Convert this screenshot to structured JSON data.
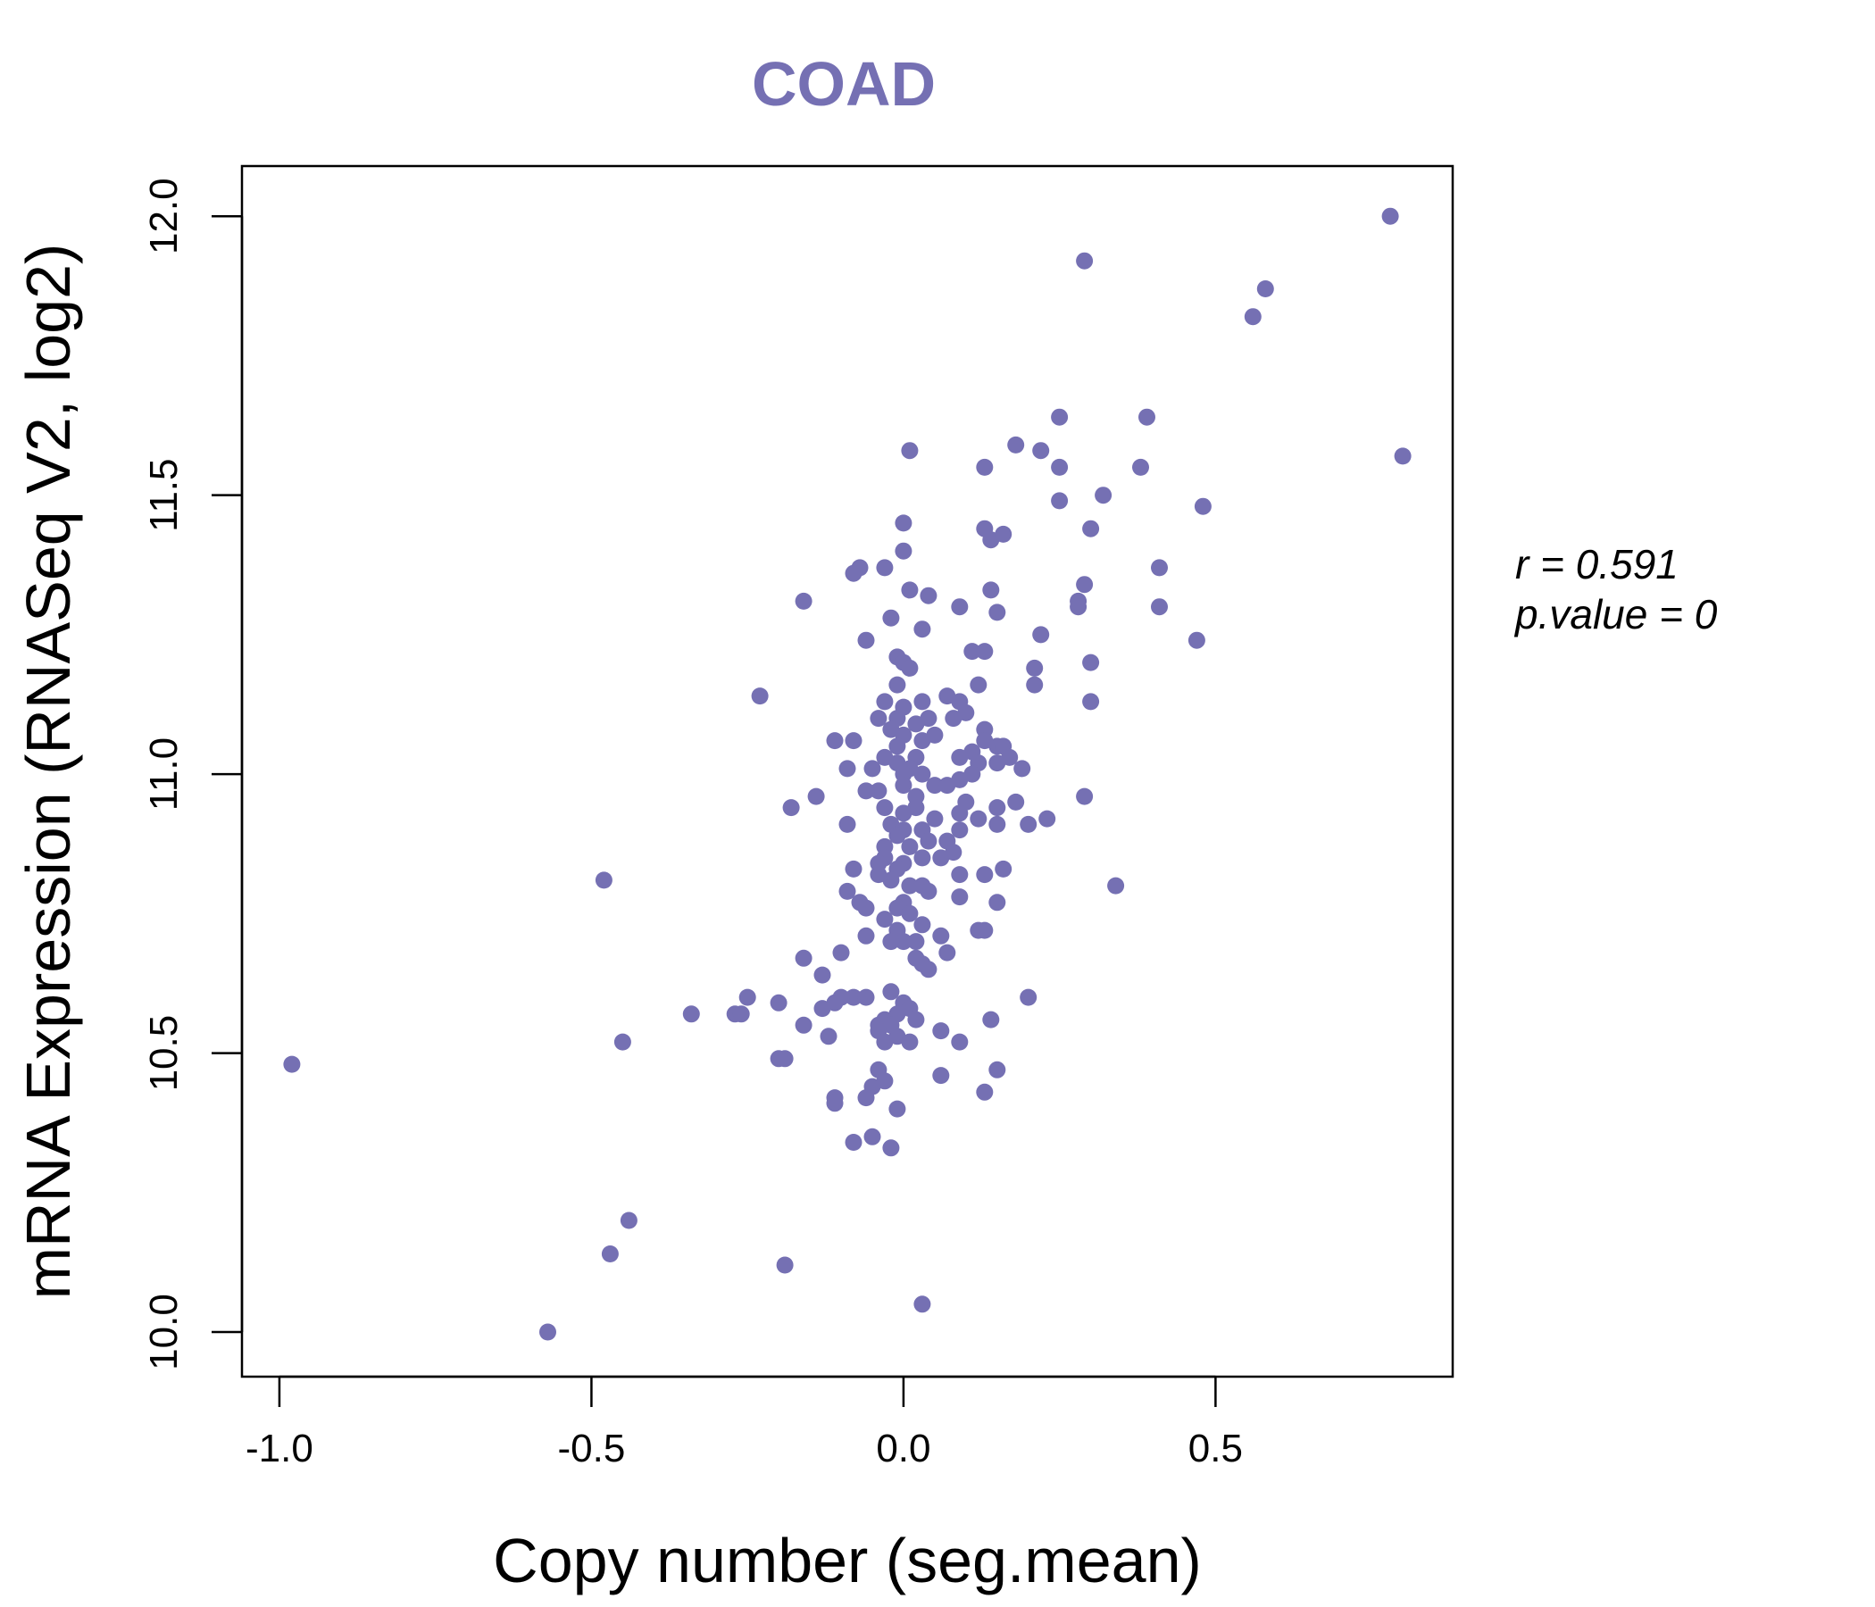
{
  "chart_data": {
    "type": "scatter",
    "title": "COAD",
    "xlabel": "Copy number (seg.mean)",
    "ylabel": "mRNA Expression (RNASeq V2, log2)",
    "xlim": [
      -1.06,
      0.88
    ],
    "ylim": [
      9.92,
      12.09
    ],
    "x_ticks": [
      -1.0,
      -0.5,
      0.0,
      0.5
    ],
    "x_tick_labels": [
      "-1.0",
      "-0.5",
      "0.0",
      "0.5"
    ],
    "y_ticks": [
      10.0,
      10.5,
      11.0,
      11.5,
      12.0
    ],
    "y_tick_labels": [
      "10.0",
      "10.5",
      "11.0",
      "11.5",
      "12.0"
    ],
    "grid": false,
    "point_color": "#7570b3",
    "annotations": {
      "r_label": "r = 0.591",
      "p_label": "p.value = 0"
    },
    "points": [
      [
        0.78,
        12.0
      ],
      [
        0.29,
        11.92
      ],
      [
        0.58,
        11.87
      ],
      [
        0.56,
        11.82
      ],
      [
        0.8,
        11.57
      ],
      [
        0.25,
        11.64
      ],
      [
        0.39,
        11.64
      ],
      [
        0.01,
        11.58
      ],
      [
        0.18,
        11.59
      ],
      [
        0.22,
        11.58
      ],
      [
        0.13,
        11.55
      ],
      [
        0.25,
        11.55
      ],
      [
        0.38,
        11.55
      ],
      [
        0.32,
        11.5
      ],
      [
        0.25,
        11.49
      ],
      [
        0.48,
        11.48
      ],
      [
        0.0,
        11.45
      ],
      [
        0.13,
        11.44
      ],
      [
        0.3,
        11.44
      ],
      [
        0.14,
        11.42
      ],
      [
        0.16,
        11.43
      ],
      [
        0.0,
        11.4
      ],
      [
        -0.07,
        11.37
      ],
      [
        -0.08,
        11.36
      ],
      [
        -0.03,
        11.37
      ],
      [
        0.41,
        11.37
      ],
      [
        0.29,
        11.34
      ],
      [
        0.14,
        11.33
      ],
      [
        0.01,
        11.33
      ],
      [
        0.04,
        11.32
      ],
      [
        -0.16,
        11.31
      ],
      [
        0.28,
        11.31
      ],
      [
        0.28,
        11.3
      ],
      [
        0.41,
        11.3
      ],
      [
        0.09,
        11.3
      ],
      [
        0.15,
        11.29
      ],
      [
        -0.02,
        11.28
      ],
      [
        0.03,
        11.26
      ],
      [
        -0.06,
        11.24
      ],
      [
        0.22,
        11.25
      ],
      [
        0.47,
        11.24
      ],
      [
        0.11,
        11.22
      ],
      [
        0.13,
        11.22
      ],
      [
        -0.01,
        11.21
      ],
      [
        0.0,
        11.2
      ],
      [
        0.3,
        11.2
      ],
      [
        0.21,
        11.19
      ],
      [
        0.01,
        11.19
      ],
      [
        -0.01,
        11.16
      ],
      [
        0.12,
        11.16
      ],
      [
        0.21,
        11.16
      ],
      [
        -0.23,
        11.14
      ],
      [
        0.07,
        11.14
      ],
      [
        0.09,
        11.13
      ],
      [
        -0.03,
        11.13
      ],
      [
        0.03,
        11.13
      ],
      [
        0.3,
        11.13
      ],
      [
        0.0,
        11.12
      ],
      [
        0.1,
        11.11
      ],
      [
        -0.04,
        11.1
      ],
      [
        -0.01,
        11.1
      ],
      [
        0.04,
        11.1
      ],
      [
        0.08,
        11.1
      ],
      [
        0.02,
        11.09
      ],
      [
        0.13,
        11.08
      ],
      [
        -0.02,
        11.08
      ],
      [
        0.0,
        11.07
      ],
      [
        0.05,
        11.07
      ],
      [
        0.13,
        11.06
      ],
      [
        -0.11,
        11.06
      ],
      [
        -0.08,
        11.06
      ],
      [
        0.03,
        11.06
      ],
      [
        0.15,
        11.05
      ],
      [
        0.16,
        11.05
      ],
      [
        -0.01,
        11.05
      ],
      [
        0.11,
        11.04
      ],
      [
        0.17,
        11.03
      ],
      [
        -0.03,
        11.03
      ],
      [
        0.02,
        11.03
      ],
      [
        0.09,
        11.03
      ],
      [
        0.15,
        11.02
      ],
      [
        0.12,
        11.02
      ],
      [
        -0.01,
        11.02
      ],
      [
        0.01,
        11.01
      ],
      [
        0.19,
        11.01
      ],
      [
        -0.09,
        11.01
      ],
      [
        -0.05,
        11.01
      ],
      [
        0.0,
        11.0
      ],
      [
        0.03,
        11.0
      ],
      [
        0.11,
        11.0
      ],
      [
        0.09,
        10.99
      ],
      [
        0.05,
        10.98
      ],
      [
        0.0,
        10.98
      ],
      [
        0.07,
        10.98
      ],
      [
        -0.04,
        10.97
      ],
      [
        -0.06,
        10.97
      ],
      [
        -0.14,
        10.96
      ],
      [
        0.02,
        10.96
      ],
      [
        0.29,
        10.96
      ],
      [
        0.1,
        10.95
      ],
      [
        0.15,
        10.94
      ],
      [
        0.18,
        10.95
      ],
      [
        0.02,
        10.94
      ],
      [
        -0.03,
        10.94
      ],
      [
        0.09,
        10.93
      ],
      [
        -0.18,
        10.94
      ],
      [
        0.0,
        10.93
      ],
      [
        0.05,
        10.92
      ],
      [
        0.12,
        10.92
      ],
      [
        0.23,
        10.92
      ],
      [
        0.15,
        10.91
      ],
      [
        -0.02,
        10.91
      ],
      [
        0.2,
        10.91
      ],
      [
        -0.09,
        10.91
      ],
      [
        0.09,
        10.9
      ],
      [
        0.0,
        10.9
      ],
      [
        0.03,
        10.9
      ],
      [
        -0.01,
        10.89
      ],
      [
        0.07,
        10.88
      ],
      [
        0.04,
        10.88
      ],
      [
        0.01,
        10.87
      ],
      [
        -0.03,
        10.87
      ],
      [
        0.08,
        10.86
      ],
      [
        0.06,
        10.85
      ],
      [
        -0.03,
        10.85
      ],
      [
        0.03,
        10.85
      ],
      [
        -0.04,
        10.84
      ],
      [
        0.0,
        10.84
      ],
      [
        0.16,
        10.83
      ],
      [
        -0.08,
        10.83
      ],
      [
        -0.01,
        10.83
      ],
      [
        -0.04,
        10.82
      ],
      [
        0.09,
        10.82
      ],
      [
        0.13,
        10.82
      ],
      [
        -0.48,
        10.81
      ],
      [
        -0.02,
        10.81
      ],
      [
        0.01,
        10.8
      ],
      [
        0.34,
        10.8
      ],
      [
        0.03,
        10.8
      ],
      [
        -0.09,
        10.79
      ],
      [
        0.04,
        10.79
      ],
      [
        0.09,
        10.78
      ],
      [
        0.0,
        10.77
      ],
      [
        -0.07,
        10.77
      ],
      [
        0.15,
        10.77
      ],
      [
        -0.06,
        10.76
      ],
      [
        -0.01,
        10.76
      ],
      [
        0.01,
        10.75
      ],
      [
        -0.03,
        10.74
      ],
      [
        0.03,
        10.73
      ],
      [
        -0.01,
        10.72
      ],
      [
        0.12,
        10.72
      ],
      [
        0.13,
        10.72
      ],
      [
        0.06,
        10.71
      ],
      [
        -0.06,
        10.71
      ],
      [
        0.0,
        10.7
      ],
      [
        0.02,
        10.7
      ],
      [
        -0.02,
        10.7
      ],
      [
        0.07,
        10.68
      ],
      [
        -0.1,
        10.68
      ],
      [
        0.02,
        10.67
      ],
      [
        -0.16,
        10.67
      ],
      [
        0.03,
        10.66
      ],
      [
        -0.13,
        10.64
      ],
      [
        0.04,
        10.65
      ],
      [
        -0.02,
        10.61
      ],
      [
        -0.08,
        10.6
      ],
      [
        -0.1,
        10.6
      ],
      [
        0.2,
        10.6
      ],
      [
        -0.25,
        10.6
      ],
      [
        -0.06,
        10.6
      ],
      [
        -0.2,
        10.59
      ],
      [
        0.0,
        10.59
      ],
      [
        -0.11,
        10.59
      ],
      [
        0.01,
        10.58
      ],
      [
        -0.13,
        10.58
      ],
      [
        -0.01,
        10.57
      ],
      [
        -0.34,
        10.57
      ],
      [
        -0.27,
        10.57
      ],
      [
        -0.26,
        10.57
      ],
      [
        -0.03,
        10.56
      ],
      [
        0.14,
        10.56
      ],
      [
        0.02,
        10.56
      ],
      [
        -0.04,
        10.55
      ],
      [
        -0.02,
        10.55
      ],
      [
        -0.16,
        10.55
      ],
      [
        0.06,
        10.54
      ],
      [
        -0.04,
        10.54
      ],
      [
        -0.01,
        10.53
      ],
      [
        -0.12,
        10.53
      ],
      [
        0.01,
        10.52
      ],
      [
        -0.03,
        10.52
      ],
      [
        0.09,
        10.52
      ],
      [
        -0.45,
        10.52
      ],
      [
        -0.19,
        10.49
      ],
      [
        -0.2,
        10.49
      ],
      [
        -0.04,
        10.47
      ],
      [
        0.15,
        10.47
      ],
      [
        0.06,
        10.46
      ],
      [
        -0.03,
        10.45
      ],
      [
        -0.05,
        10.44
      ],
      [
        -0.06,
        10.42
      ],
      [
        -0.11,
        10.42
      ],
      [
        -0.11,
        10.41
      ],
      [
        0.13,
        10.43
      ],
      [
        -0.01,
        10.4
      ],
      [
        -0.05,
        10.35
      ],
      [
        -0.08,
        10.34
      ],
      [
        -0.02,
        10.33
      ],
      [
        -0.98,
        10.48
      ],
      [
        -0.44,
        10.2
      ],
      [
        -0.47,
        10.14
      ],
      [
        -0.19,
        10.12
      ],
      [
        0.03,
        10.05
      ],
      [
        -0.57,
        10.0
      ]
    ]
  }
}
